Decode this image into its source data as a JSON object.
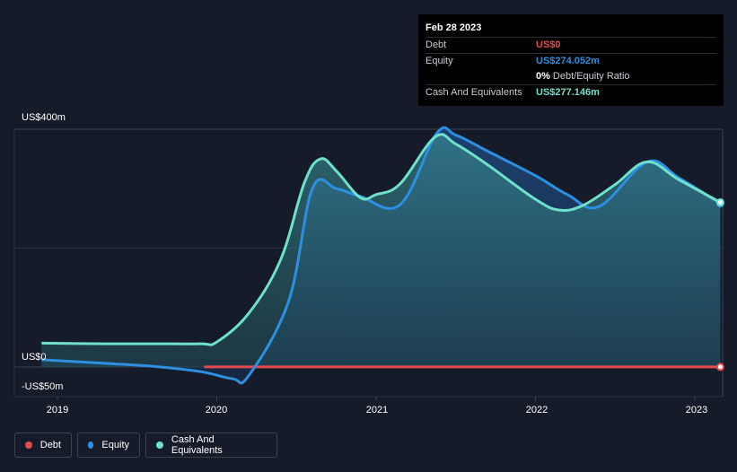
{
  "tooltip": {
    "date": "Feb 28 2023",
    "rows": [
      {
        "label": "Debt",
        "value": "US$0",
        "color": "#e64a4f"
      },
      {
        "label": "Equity",
        "value": "US$274.052m",
        "color": "#2e8fe0"
      },
      {
        "label": "",
        "value": "0%",
        "sub": "Debt/Equity Ratio",
        "color": "#ffffff"
      },
      {
        "label": "Cash And Equivalents",
        "value": "US$277.146m",
        "color": "#6ee0cc"
      }
    ]
  },
  "legend": [
    {
      "label": "Debt",
      "color": "#e64a4f"
    },
    {
      "label": "Equity",
      "color": "#2e8fe0"
    },
    {
      "label": "Cash And Equivalents",
      "color": "#6ee0cc"
    }
  ],
  "chart_data": {
    "type": "area",
    "title": "",
    "xlabel": "",
    "ylabel": "",
    "unit": "US$ millions",
    "ylim": [
      -50,
      400
    ],
    "xlim": [
      2018.9,
      2023.16
    ],
    "y_tick_labels": [
      {
        "label": "US$400m",
        "value": 400
      },
      {
        "label": "US$0",
        "value": 0
      },
      {
        "label": "-US$50m",
        "value": -50
      }
    ],
    "x_tick_labels": [
      {
        "label": "2019",
        "value": 2019
      },
      {
        "label": "2020",
        "value": 2020
      },
      {
        "label": "2021",
        "value": 2021
      },
      {
        "label": "2022",
        "value": 2022
      },
      {
        "label": "2023",
        "value": 2023
      }
    ],
    "gridlines": [
      400,
      200,
      0
    ],
    "series": [
      {
        "name": "Debt",
        "color": "#e64a4f",
        "x": [
          2019.92,
          2023.16
        ],
        "values": [
          0,
          0
        ]
      },
      {
        "name": "Equity",
        "color": "#2e8fe0",
        "x": [
          2018.9,
          2019.3,
          2019.6,
          2019.9,
          2020.1,
          2020.2,
          2020.45,
          2020.6,
          2020.75,
          2020.9,
          2021.15,
          2021.38,
          2021.5,
          2021.7,
          2022.0,
          2022.2,
          2022.4,
          2022.7,
          2022.9,
          2023.16
        ],
        "values": [
          12,
          6,
          1,
          -8,
          -20,
          -15,
          110,
          300,
          300,
          287,
          273,
          393,
          390,
          363,
          322,
          290,
          270,
          345,
          318,
          275
        ]
      },
      {
        "name": "Cash And Equivalents",
        "color": "#6ee0cc",
        "x": [
          2018.9,
          2019.3,
          2019.6,
          2019.9,
          2020.0,
          2020.2,
          2020.4,
          2020.55,
          2020.65,
          2020.75,
          2020.9,
          2021.0,
          2021.15,
          2021.37,
          2021.5,
          2021.7,
          2022.0,
          2022.15,
          2022.3,
          2022.5,
          2022.7,
          2022.9,
          2023.16
        ],
        "values": [
          40,
          39,
          39,
          39,
          42,
          90,
          180,
          310,
          350,
          330,
          285,
          290,
          308,
          387,
          375,
          340,
          282,
          264,
          272,
          307,
          345,
          315,
          277
        ]
      }
    ]
  }
}
